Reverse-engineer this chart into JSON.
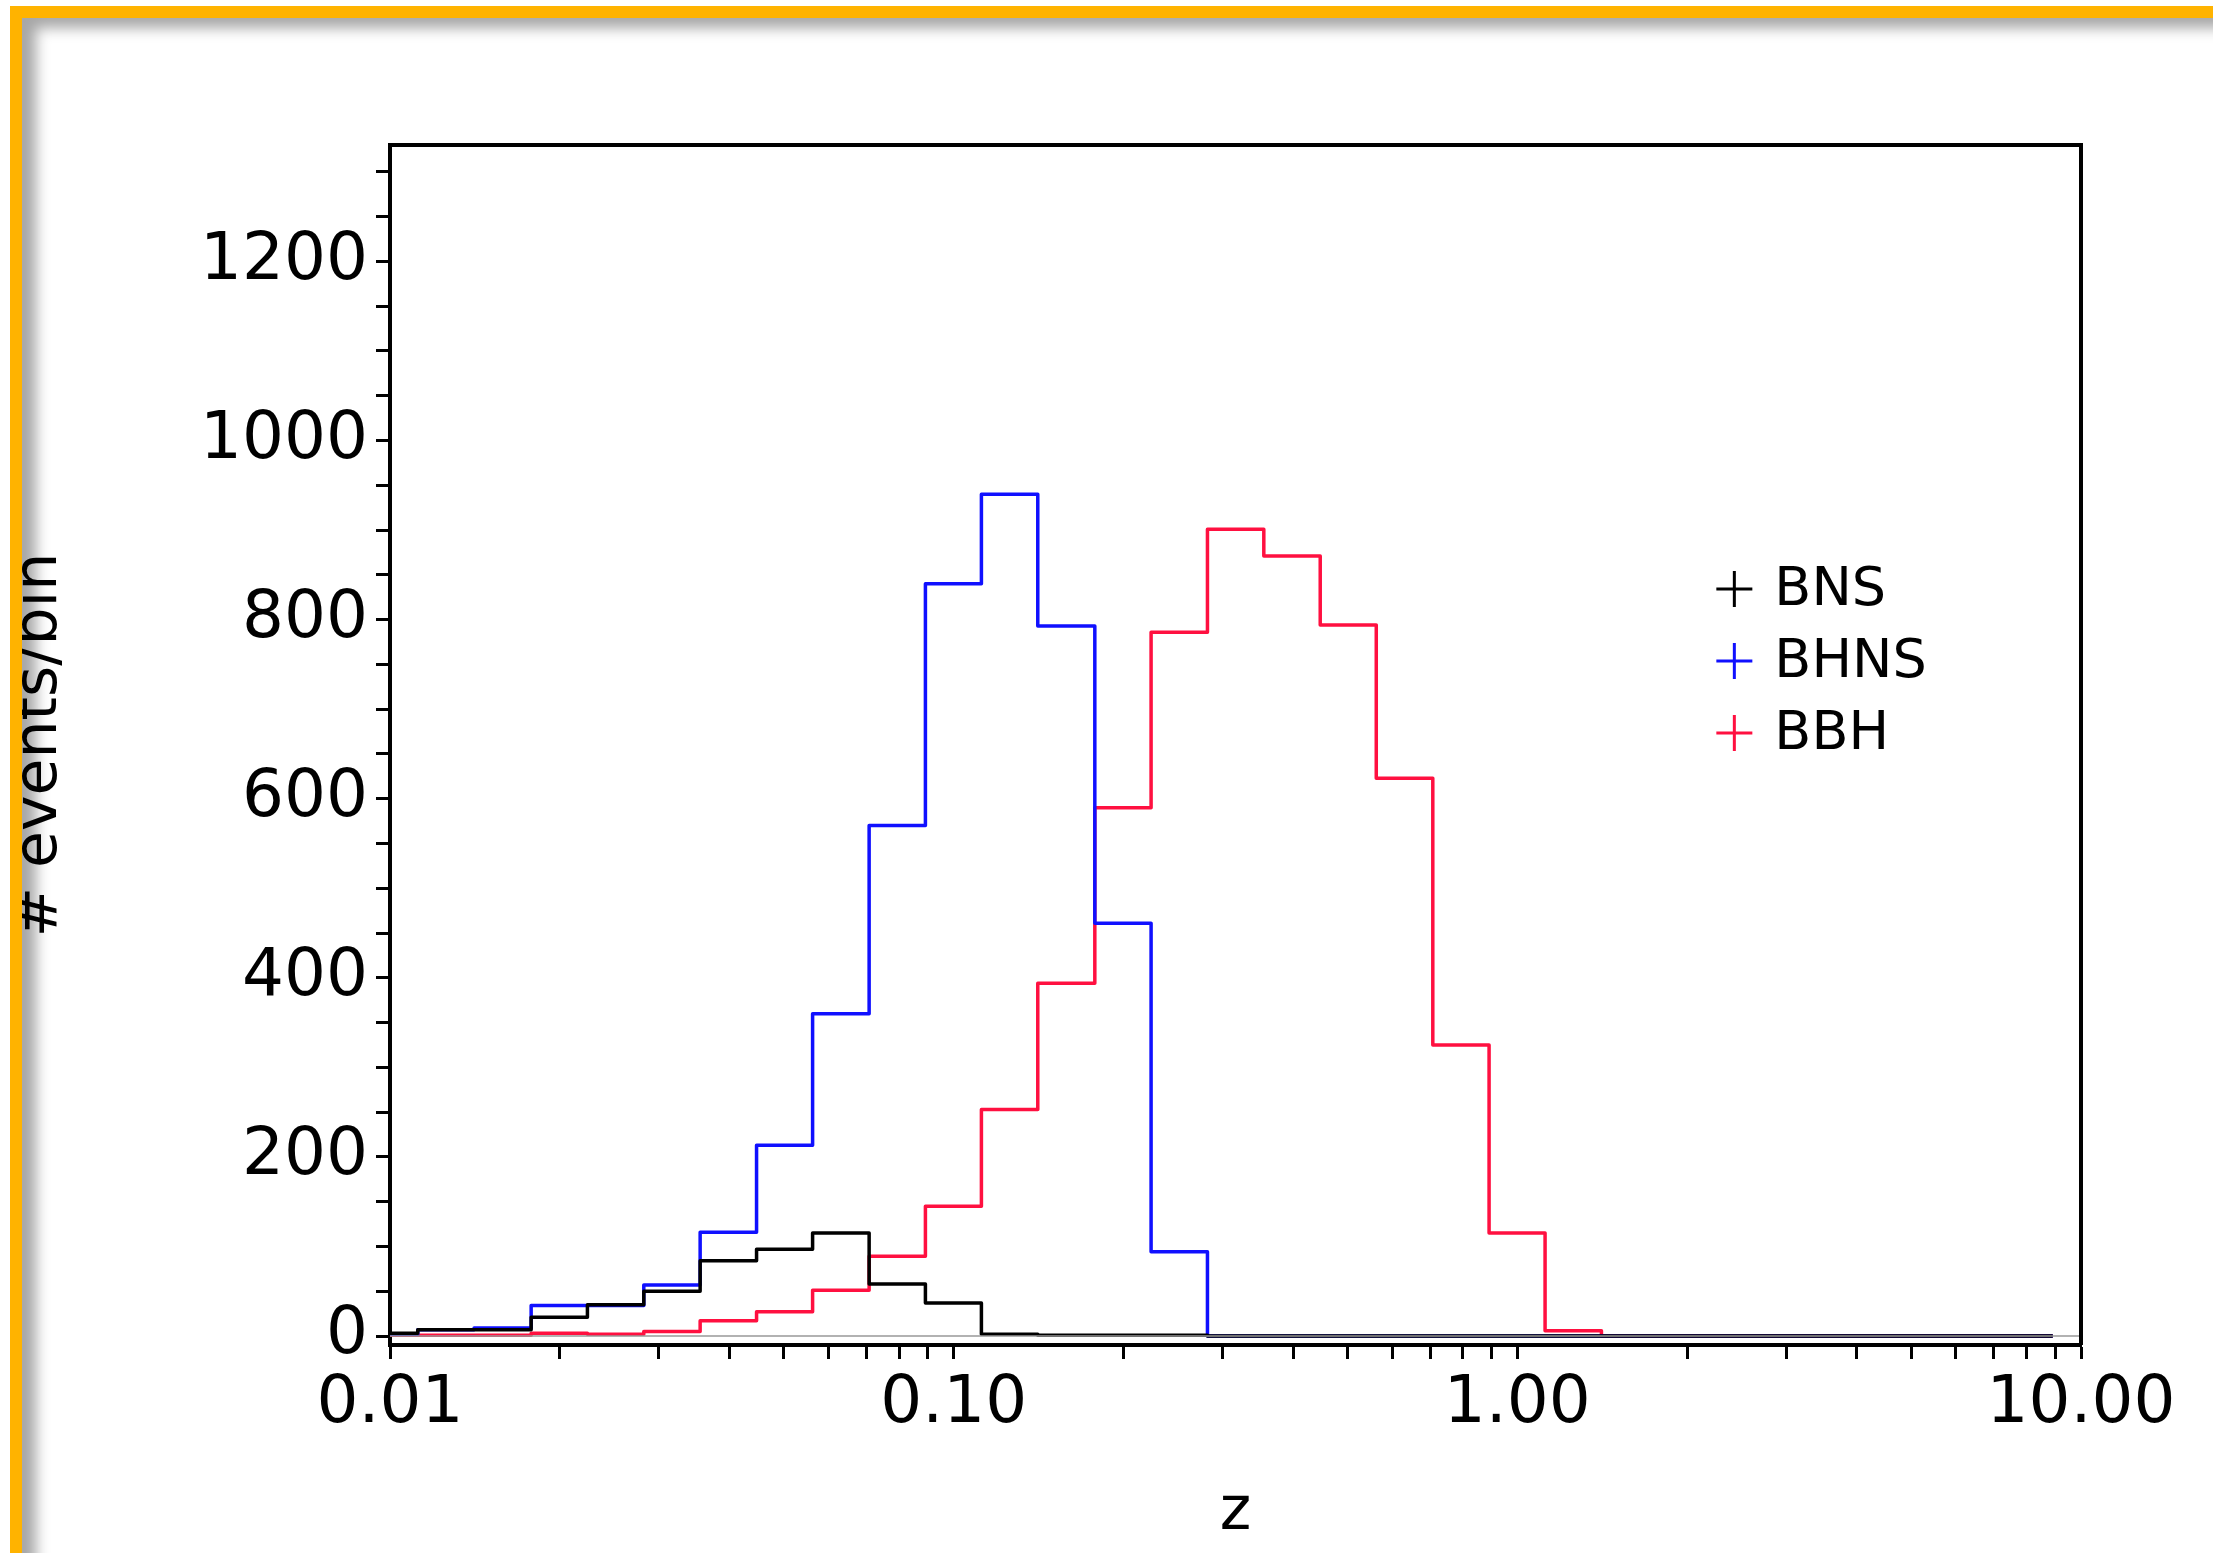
{
  "chart_data": {
    "type": "histogram",
    "xlabel": "z",
    "ylabel": "# events/bin",
    "bins": [
      0.01,
      0.0112,
      0.0141,
      0.0178,
      0.0224,
      0.0282,
      0.0355,
      0.0447,
      0.0562,
      0.0708,
      0.0891,
      0.112,
      0.141,
      0.178,
      0.224,
      0.282,
      0.355,
      0.447,
      0.562,
      0.708,
      0.891,
      1.12,
      1.41,
      1.78,
      2.24,
      2.82,
      3.55,
      4.47,
      5.62,
      7.08,
      8.91
    ],
    "series": [
      {
        "name": "BNS",
        "color": "#000000",
        "values": [
          3,
          7,
          7,
          21,
          35,
          50,
          84,
          97,
          115,
          58,
          37,
          2,
          1,
          1,
          1,
          0,
          0,
          0,
          0,
          0,
          0,
          0,
          0,
          0,
          0,
          0,
          0,
          0,
          0,
          0
        ]
      },
      {
        "name": "BHNS",
        "color": "#1010ff",
        "values": [
          2,
          7,
          9,
          34,
          34,
          57,
          116,
          213,
          360,
          570,
          840,
          940,
          793,
          461,
          94,
          0,
          0,
          0,
          0,
          0,
          0,
          0,
          0,
          0,
          0,
          0,
          0,
          0,
          0,
          0
        ]
      },
      {
        "name": "BBH",
        "color": "#ff1040",
        "values": [
          1,
          1,
          1,
          3,
          2,
          5,
          17,
          27,
          51,
          89,
          145,
          253,
          394,
          590,
          786,
          901,
          871,
          794,
          623,
          325,
          115,
          6,
          0,
          0,
          0,
          0,
          0,
          0,
          0,
          0
        ]
      }
    ],
    "log": "x",
    "xlim": [
      0.01,
      10
    ],
    "xticks": [
      {
        "value": 0.01,
        "label": "0.01"
      },
      {
        "value": 0.02,
        "label": null
      },
      {
        "value": 0.03,
        "label": null
      },
      {
        "value": 0.04,
        "label": null
      },
      {
        "value": 0.05,
        "label": null
      },
      {
        "value": 0.06,
        "label": null
      },
      {
        "value": 0.07,
        "label": null
      },
      {
        "value": 0.08,
        "label": null
      },
      {
        "value": 0.09,
        "label": null
      },
      {
        "value": 0.1,
        "label": "0.10"
      },
      {
        "value": 0.2,
        "label": null
      },
      {
        "value": 0.3,
        "label": null
      },
      {
        "value": 0.4,
        "label": null
      },
      {
        "value": 0.5,
        "label": null
      },
      {
        "value": 0.6,
        "label": null
      },
      {
        "value": 0.7,
        "label": null
      },
      {
        "value": 0.8,
        "label": null
      },
      {
        "value": 0.9,
        "label": null
      },
      {
        "value": 1,
        "label": "1.00"
      },
      {
        "value": 2,
        "label": null
      },
      {
        "value": 3,
        "label": null
      },
      {
        "value": 4,
        "label": null
      },
      {
        "value": 5,
        "label": null
      },
      {
        "value": 6,
        "label": null
      },
      {
        "value": 7,
        "label": null
      },
      {
        "value": 8,
        "label": null
      },
      {
        "value": 9,
        "label": null
      },
      {
        "value": 10,
        "label": "10.00"
      }
    ],
    "ylim": [
      -10,
      1330
    ],
    "yticks": [
      0,
      {
        "value": 50,
        "label": null
      },
      {
        "value": 100,
        "label": null
      },
      {
        "value": 150,
        "label": null
      },
      200,
      {
        "value": 250,
        "label": null
      },
      {
        "value": 300,
        "label": null
      },
      {
        "value": 350,
        "label": null
      },
      400,
      {
        "value": 450,
        "label": null
      },
      {
        "value": 500,
        "label": null
      },
      {
        "value": 550,
        "label": null
      },
      600,
      {
        "value": 650,
        "label": null
      },
      {
        "value": 700,
        "label": null
      },
      {
        "value": 750,
        "label": null
      },
      800,
      {
        "value": 850,
        "label": null
      },
      {
        "value": 900,
        "label": null
      },
      {
        "value": 950,
        "label": null
      },
      1000,
      {
        "value": 1050,
        "label": null
      },
      {
        "value": 1100,
        "label": null
      },
      {
        "value": 1150,
        "label": null
      },
      1200,
      {
        "value": 1250,
        "label": null
      },
      {
        "value": 1300,
        "label": null
      }
    ],
    "ref_lines": [
      {
        "axis": "y",
        "value": 0,
        "color": "#999999"
      }
    ],
    "legend": "top right",
    "marker": "cross"
  }
}
